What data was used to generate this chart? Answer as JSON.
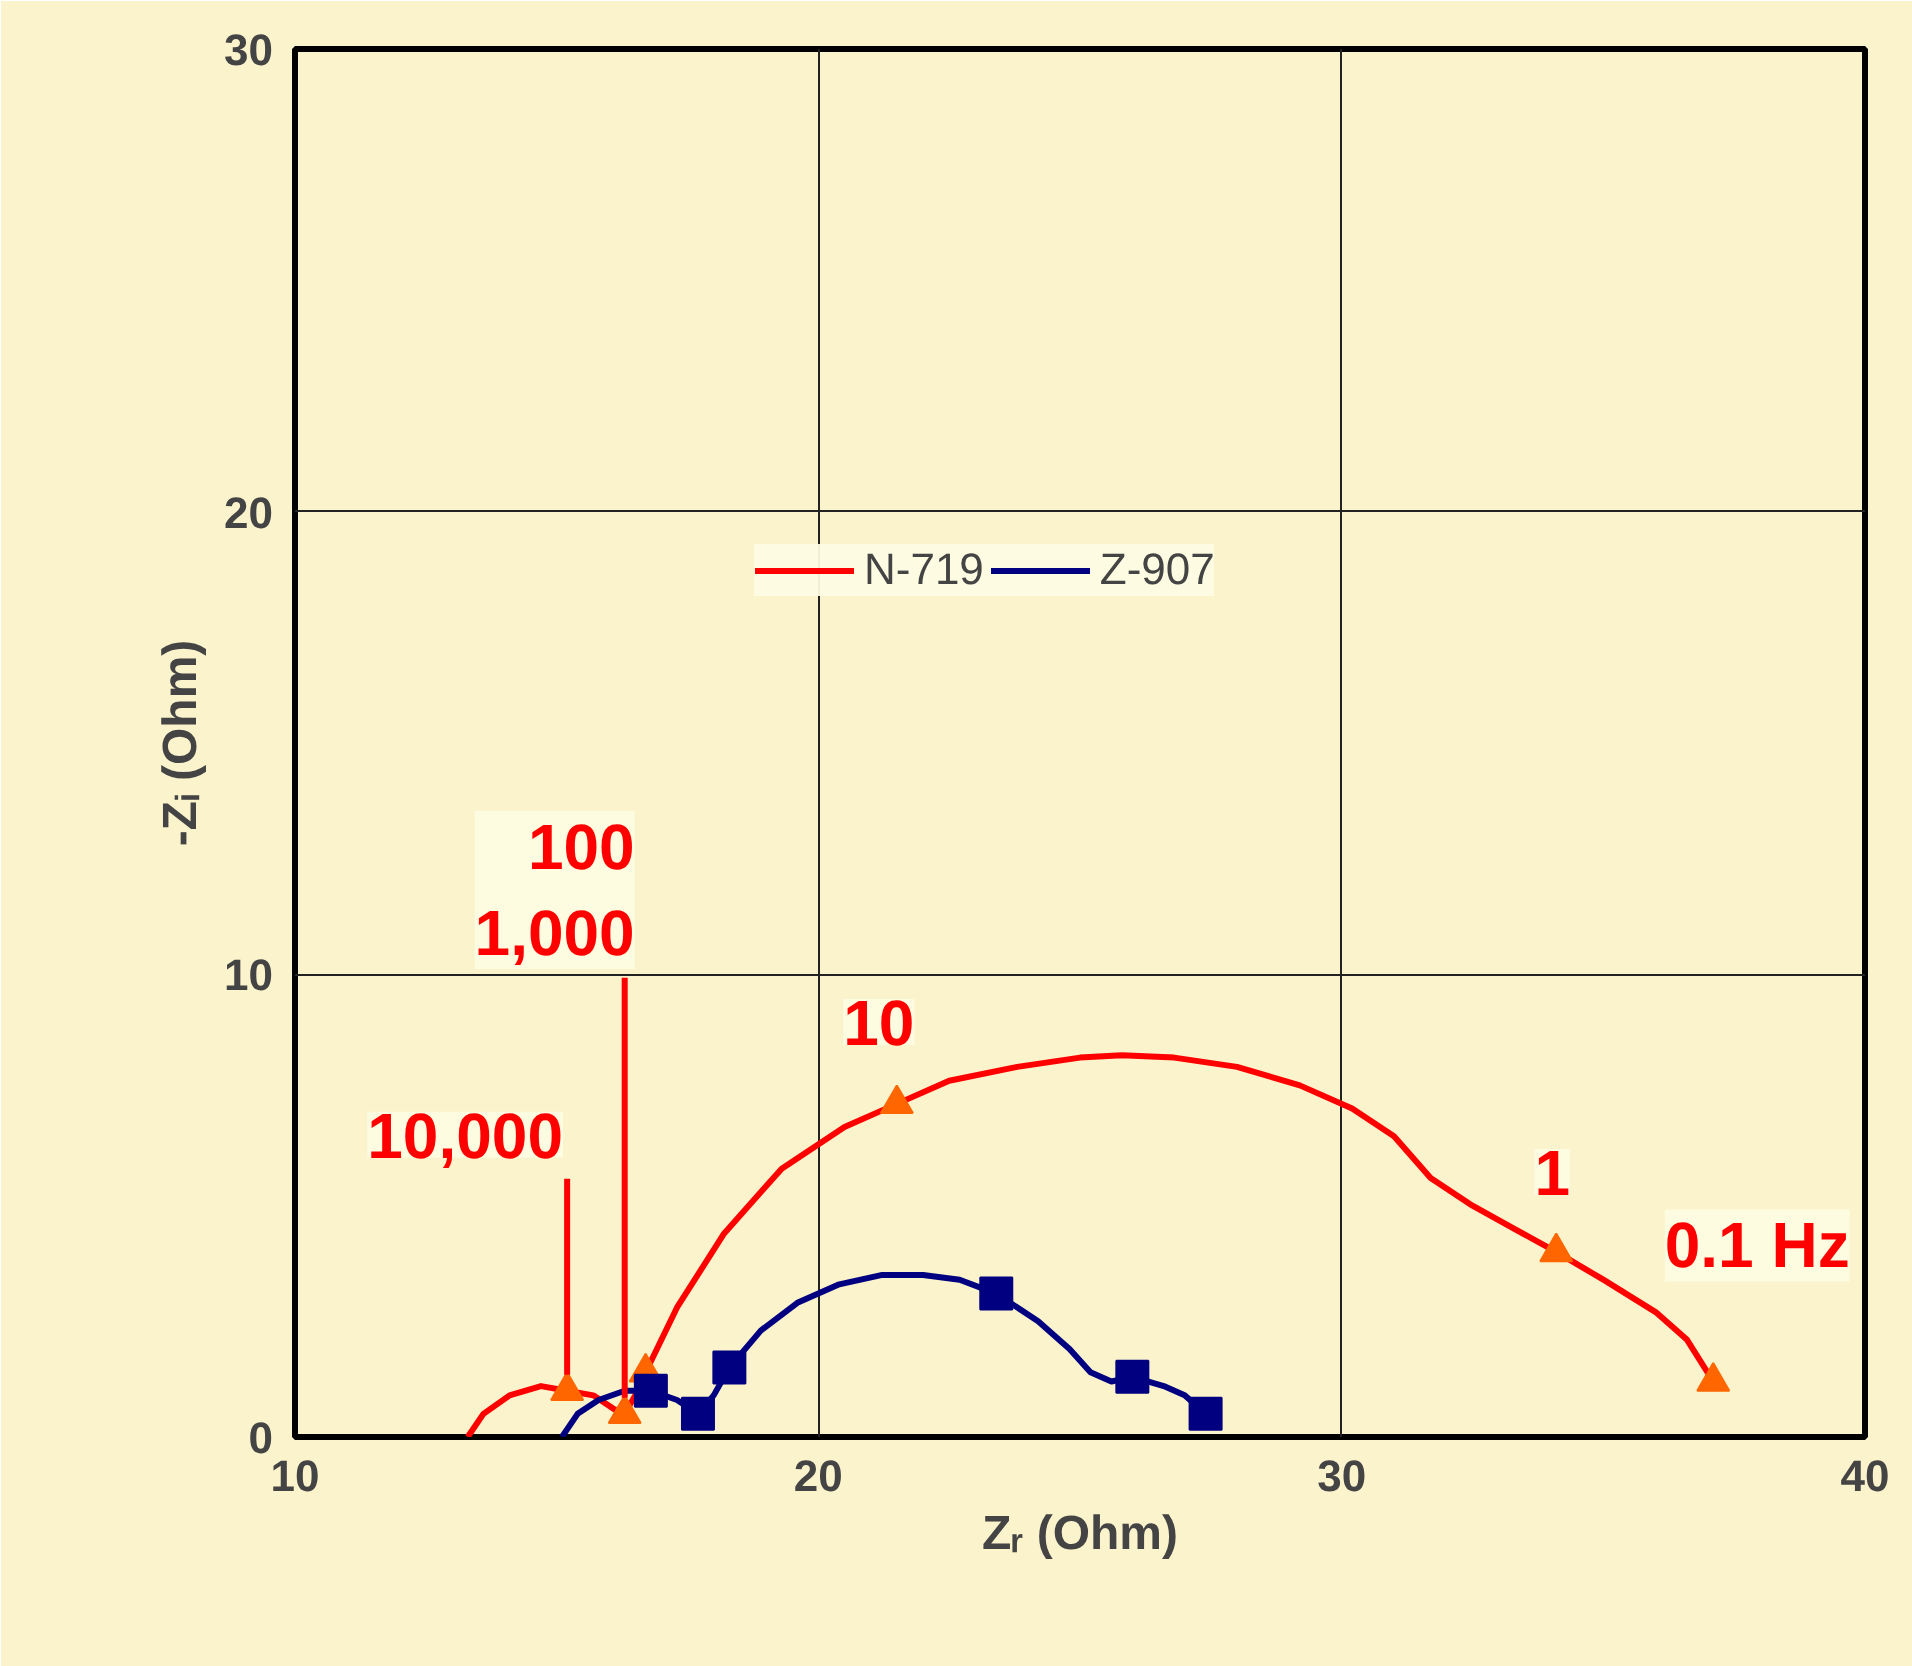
{
  "chart_data": {
    "type": "line",
    "xlabel": "Zᵣ (Ohm)",
    "ylabel": "-Zᵢ (Ohm)",
    "xlim": [
      10,
      40
    ],
    "xticks": [
      10,
      20,
      30,
      40
    ],
    "ylim": [
      0,
      30
    ],
    "yticks": [
      0,
      10,
      20,
      30
    ],
    "grid": true,
    "legend": "center",
    "series": [
      {
        "name": "N-719",
        "color": "#ff0000",
        "x": [
          13.3,
          13.6,
          14.1,
          14.7,
          15.2,
          15.7,
          16.1,
          16.3,
          16.5,
          16.7,
          17.3,
          18.2,
          19.3,
          20.5,
          21.5,
          22.5,
          23.8,
          25.0,
          25.8,
          26.8,
          28.0,
          29.2,
          30.2,
          31.0,
          31.7,
          32.5,
          33.3,
          34.1,
          35.0,
          36.0,
          36.6,
          37.1
        ],
        "values": [
          0,
          0.5,
          0.9,
          1.1,
          1.0,
          0.9,
          0.6,
          0.5,
          0.9,
          1.4,
          2.8,
          4.4,
          5.8,
          6.7,
          7.2,
          7.7,
          8.0,
          8.2,
          8.25,
          8.2,
          8.0,
          7.6,
          7.1,
          6.5,
          5.6,
          5.0,
          4.5,
          4.0,
          3.4,
          2.7,
          2.1,
          1.2
        ]
      },
      {
        "name": "Z-907",
        "color": "#000080",
        "x": [
          15.1,
          15.4,
          15.8,
          16.3,
          16.8,
          17.3,
          17.7,
          18.0,
          18.3,
          18.9,
          19.6,
          20.4,
          21.2,
          22.0,
          22.7,
          23.4,
          24.2,
          24.8,
          25.2,
          25.6,
          26.0,
          26.6,
          27.0,
          27.4
        ],
        "values": [
          0,
          0.5,
          0.8,
          1.0,
          1.0,
          0.8,
          0.5,
          0.9,
          1.5,
          2.3,
          2.9,
          3.3,
          3.5,
          3.5,
          3.4,
          3.1,
          2.5,
          1.9,
          1.4,
          1.2,
          1.3,
          1.1,
          0.9,
          0.5
        ]
      },
      {
        "color": "#ff6600",
        "type": "scatter",
        "marker": "triangle",
        "x": [
          15.2,
          16.3,
          16.7,
          21.5,
          34.1,
          37.1
        ],
        "values": [
          1.0,
          0.5,
          1.4,
          7.2,
          4.0,
          1.2
        ]
      },
      {
        "color": "#000080",
        "type": "scatter",
        "marker": "square",
        "x": [
          16.8,
          17.7,
          18.3,
          23.4,
          26.0,
          27.4
        ],
        "values": [
          1.0,
          0.5,
          1.5,
          3.1,
          1.3,
          0.5
        ]
      }
    ],
    "annotations": [
      {
        "text": "10,000",
        "x": 15.2,
        "y": 1.0
      },
      {
        "text": "100\n1,000",
        "x": 16.3,
        "y": 0.5
      },
      {
        "text": "10",
        "x": 21.5,
        "y": 7.2
      },
      {
        "text": "1",
        "x": 34.1,
        "y": 4.0
      },
      {
        "text": "0.1 Hz",
        "x": 37.1,
        "y": 1.2
      }
    ]
  }
}
